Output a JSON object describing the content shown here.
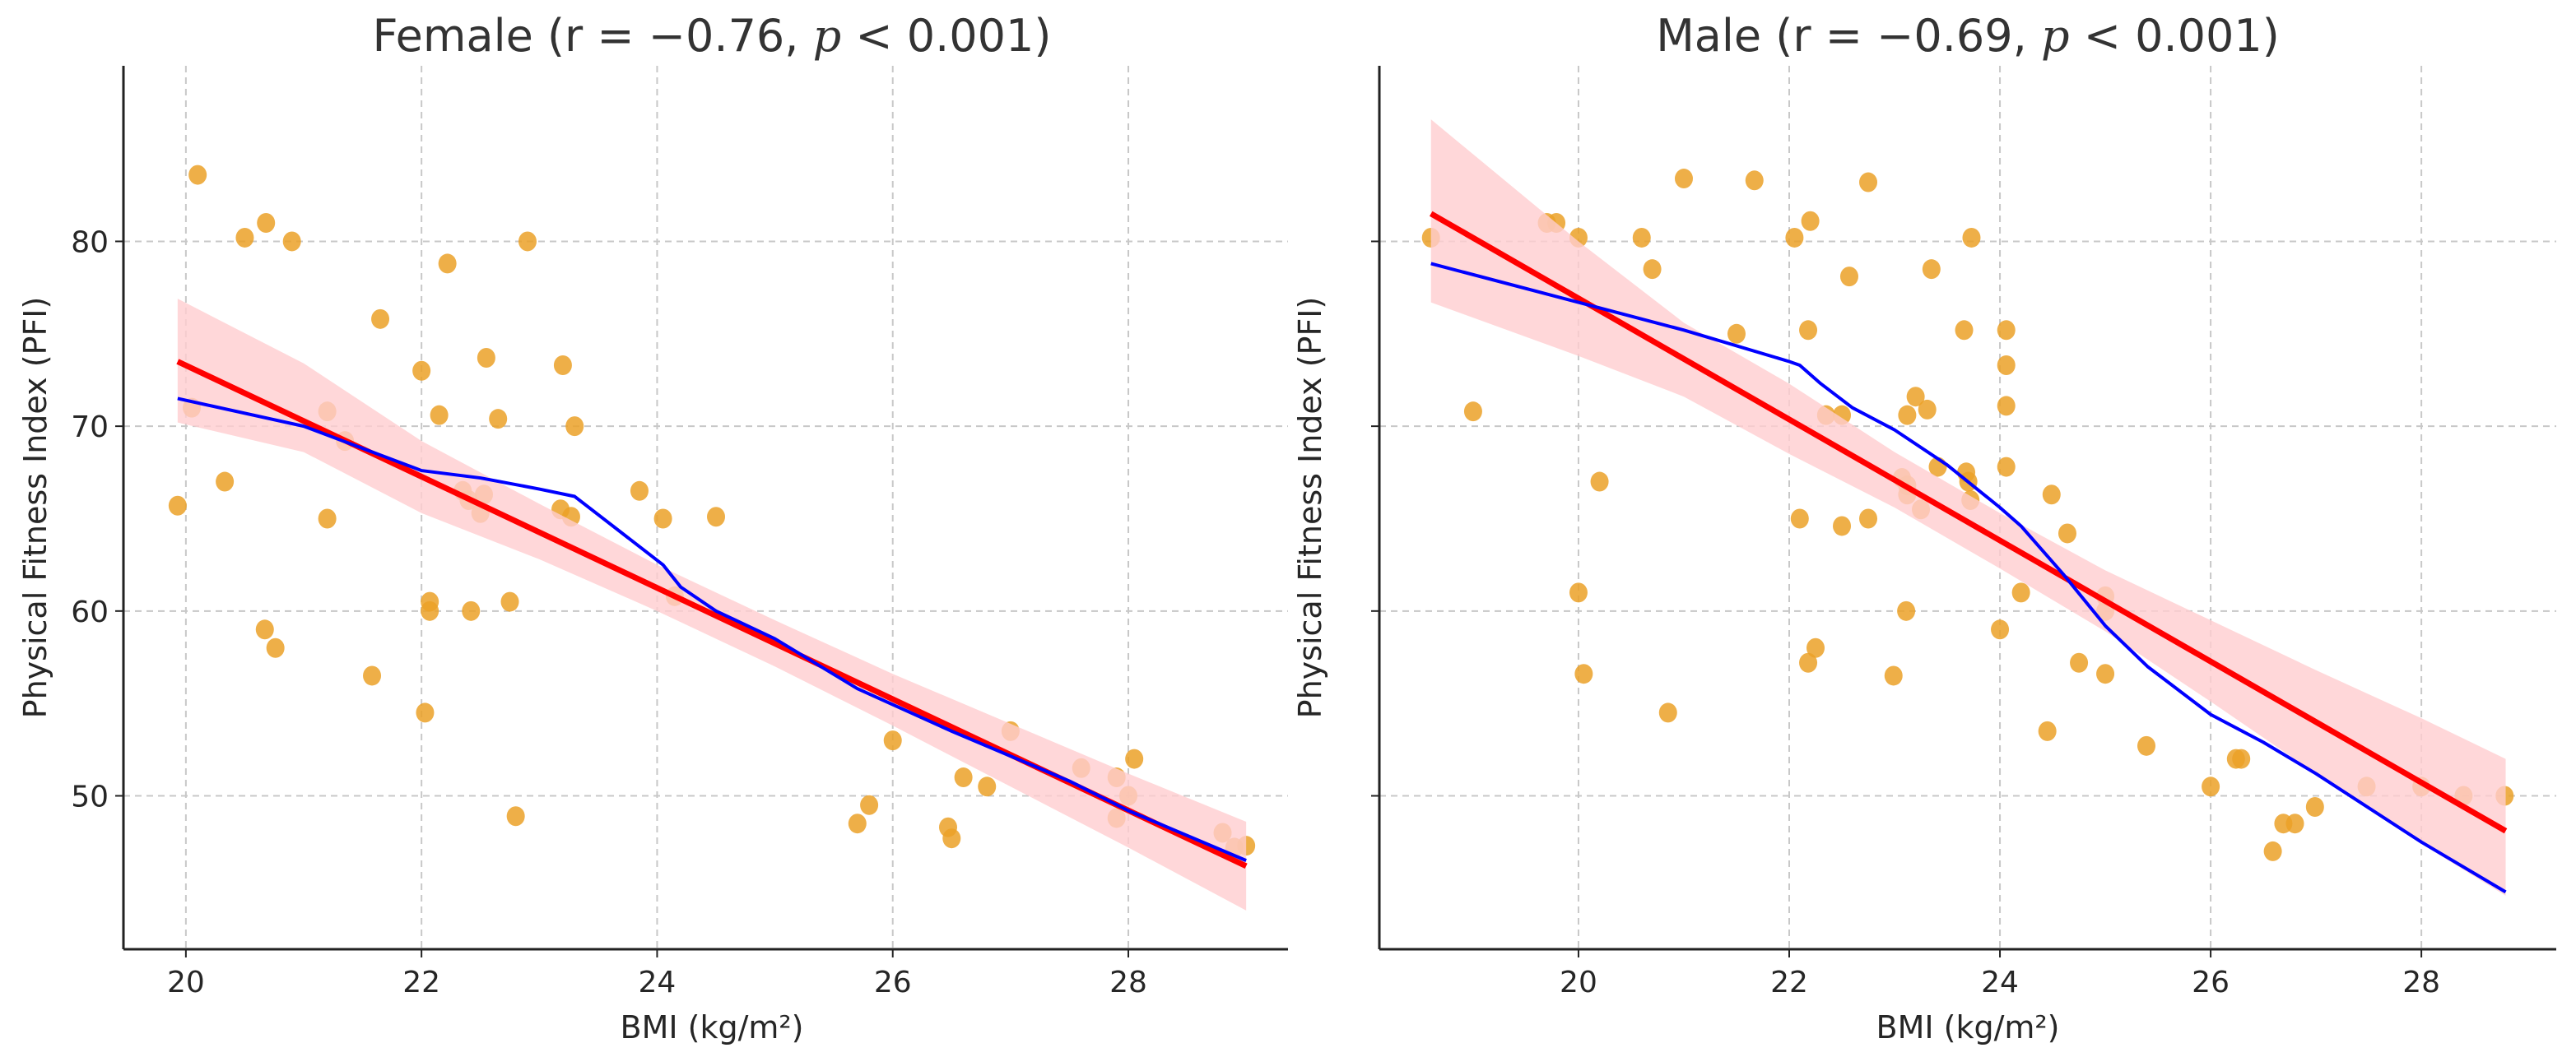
{
  "colors": {
    "points": "#EBA128",
    "fit": "#FF0000",
    "band": "#FFCDD0",
    "lowess": "#0000FF",
    "grid": "#C8C8C8"
  },
  "chart_data": [
    {
      "type": "scatter",
      "title_parts": [
        "Female (r = −0.76, ",
        "p",
        " < 0.001)"
      ],
      "xlabel": "BMI (kg/m²)",
      "ylabel": "Physical Fitness Index (PFI)",
      "xlim": [
        19.47,
        29.46
      ],
      "ylim": [
        41.7,
        89.5
      ],
      "xticks": [
        20,
        22,
        24,
        26,
        28
      ],
      "yticks": [
        50,
        60,
        70,
        80
      ],
      "show_yticklabels": true,
      "grid": true,
      "points": [
        [
          20.1,
          83.6
        ],
        [
          20.05,
          71
        ],
        [
          19.93,
          65.7
        ],
        [
          20.33,
          67
        ],
        [
          20.5,
          80.2
        ],
        [
          20.68,
          81
        ],
        [
          20.9,
          80
        ],
        [
          20.67,
          59
        ],
        [
          20.76,
          58
        ],
        [
          21.2,
          70.8
        ],
        [
          21.2,
          65
        ],
        [
          21.35,
          69.2
        ],
        [
          21.58,
          56.5
        ],
        [
          21.65,
          75.8
        ],
        [
          22,
          73
        ],
        [
          22.03,
          54.5
        ],
        [
          22.07,
          60.5
        ],
        [
          22.07,
          60
        ],
        [
          22.15,
          70.6
        ],
        [
          22.22,
          78.8
        ],
        [
          22.35,
          66.5
        ],
        [
          22.4,
          66
        ],
        [
          22.42,
          60
        ],
        [
          22.5,
          65.3
        ],
        [
          22.53,
          66.3
        ],
        [
          22.55,
          73.7
        ],
        [
          22.65,
          70.4
        ],
        [
          22.75,
          60.5
        ],
        [
          22.8,
          48.9
        ],
        [
          22.9,
          80
        ],
        [
          23.18,
          65.5
        ],
        [
          23.2,
          73.3
        ],
        [
          23.27,
          65.1
        ],
        [
          23.3,
          70
        ],
        [
          23.85,
          66.5
        ],
        [
          24.05,
          65
        ],
        [
          24.15,
          60.8
        ],
        [
          24.5,
          65.1
        ],
        [
          25.7,
          48.5
        ],
        [
          25.8,
          49.5
        ],
        [
          26,
          53
        ],
        [
          26.47,
          48.3
        ],
        [
          26.5,
          47.7
        ],
        [
          26.6,
          51
        ],
        [
          26.8,
          50.5
        ],
        [
          27,
          53.5
        ],
        [
          27.6,
          51.5
        ],
        [
          27.9,
          51
        ],
        [
          27.9,
          48.8
        ],
        [
          28,
          50
        ],
        [
          28.05,
          52
        ],
        [
          28.8,
          48
        ],
        [
          28.9,
          47.2
        ],
        [
          29,
          47.3
        ]
      ],
      "regression": [
        [
          19.93,
          73.5
        ],
        [
          29,
          46.2
        ]
      ],
      "ci_band": [
        [
          19.93,
          70.2,
          76.9
        ],
        [
          21,
          68.6,
          73.4
        ],
        [
          22,
          65.3,
          69.2
        ],
        [
          23,
          62.8,
          65.8
        ],
        [
          24,
          60.0,
          62.5
        ],
        [
          25,
          57.0,
          59.5
        ],
        [
          26,
          53.8,
          56.6
        ],
        [
          27,
          50.5,
          53.9
        ],
        [
          28,
          47.2,
          51.2
        ],
        [
          29,
          43.8,
          48.6
        ]
      ],
      "lowess": [
        [
          19.93,
          71.5
        ],
        [
          21,
          70
        ],
        [
          22,
          67.6
        ],
        [
          22.5,
          67.2
        ],
        [
          23,
          66.6
        ],
        [
          23.3,
          66.2
        ],
        [
          24.05,
          62.5
        ],
        [
          24.2,
          61.3
        ],
        [
          24.5,
          60
        ],
        [
          25,
          58.5
        ],
        [
          25.7,
          55.8
        ],
        [
          26.5,
          53.5
        ],
        [
          27.5,
          50.8
        ],
        [
          28,
          49.2
        ],
        [
          29,
          46.5
        ]
      ]
    },
    {
      "type": "scatter",
      "title_parts": [
        "Male (r = −0.69, ",
        "p",
        " < 0.001)"
      ],
      "xlabel": "BMI (kg/m²)",
      "ylabel": "Physical Fitness Index (PFI)",
      "xlim": [
        18.11,
        29.28
      ],
      "ylim": [
        41.7,
        89.5
      ],
      "xticks": [
        20,
        22,
        24,
        26,
        28
      ],
      "yticks": [
        50,
        60,
        70,
        80
      ],
      "show_yticklabels": false,
      "grid": true,
      "points": [
        [
          18.6,
          80.2
        ],
        [
          19.0,
          70.8
        ],
        [
          19.7,
          81.0
        ],
        [
          19.79,
          81.0
        ],
        [
          20.0,
          80.2
        ],
        [
          20.0,
          61.0
        ],
        [
          20.05,
          56.6
        ],
        [
          20.2,
          67.0
        ],
        [
          20.6,
          80.2
        ],
        [
          20.7,
          78.5
        ],
        [
          20.85,
          54.5
        ],
        [
          21.0,
          83.4
        ],
        [
          21.5,
          75.0
        ],
        [
          21.67,
          83.3
        ],
        [
          22.05,
          80.2
        ],
        [
          22.2,
          81.1
        ],
        [
          22.18,
          75.2
        ],
        [
          22.1,
          65.0
        ],
        [
          22.25,
          58.0
        ],
        [
          22.18,
          57.2
        ],
        [
          22.35,
          70.6
        ],
        [
          22.5,
          70.6
        ],
        [
          22.5,
          64.6
        ],
        [
          22.57,
          78.1
        ],
        [
          22.75,
          83.2
        ],
        [
          22.75,
          65.0
        ],
        [
          22.99,
          56.5
        ],
        [
          23.07,
          67.2
        ],
        [
          23.12,
          66.3
        ],
        [
          23.12,
          66.8
        ],
        [
          23.11,
          60.0
        ],
        [
          23.2,
          71.6
        ],
        [
          23.12,
          70.6
        ],
        [
          23.25,
          65.5
        ],
        [
          23.31,
          70.9
        ],
        [
          23.35,
          78.5
        ],
        [
          23.41,
          67.8
        ],
        [
          23.66,
          75.2
        ],
        [
          23.68,
          67.5
        ],
        [
          23.7,
          67.0
        ],
        [
          23.72,
          66.0
        ],
        [
          23.73,
          80.2
        ],
        [
          24.0,
          59.0
        ],
        [
          24.06,
          75.2
        ],
        [
          24.06,
          73.3
        ],
        [
          24.06,
          71.1
        ],
        [
          24.06,
          67.8
        ],
        [
          24.2,
          61.0
        ],
        [
          24.45,
          53.5
        ],
        [
          24.49,
          66.3
        ],
        [
          24.64,
          64.2
        ],
        [
          24.75,
          57.2
        ],
        [
          25.0,
          60.8
        ],
        [
          25.0,
          60.0
        ],
        [
          25.0,
          56.6
        ],
        [
          25.39,
          52.7
        ],
        [
          26.0,
          50.5
        ],
        [
          26.24,
          52.0
        ],
        [
          26.29,
          52.0
        ],
        [
          26.59,
          47.0
        ],
        [
          26.69,
          48.5
        ],
        [
          26.8,
          48.5
        ],
        [
          26.99,
          49.4
        ],
        [
          27.48,
          50.5
        ],
        [
          28.0,
          50.5
        ],
        [
          28.4,
          50.0
        ],
        [
          28.79,
          50.0
        ]
      ],
      "regression": [
        [
          18.6,
          81.5
        ],
        [
          28.8,
          48.1
        ]
      ],
      "ci_band": [
        [
          18.6,
          76.7,
          86.6
        ],
        [
          20,
          73.8,
          80.0
        ],
        [
          21,
          71.6,
          75.6
        ],
        [
          22,
          68.5,
          72.3
        ],
        [
          23,
          65.6,
          68.6
        ],
        [
          24,
          62.3,
          65.3
        ],
        [
          25,
          58.9,
          62.2
        ],
        [
          26,
          55.1,
          59.5
        ],
        [
          27,
          51.2,
          56.8
        ],
        [
          28,
          47.4,
          54.2
        ],
        [
          28.8,
          44.6,
          52.0
        ]
      ],
      "lowess": [
        [
          18.6,
          78.8
        ],
        [
          20,
          76.7
        ],
        [
          21,
          75.2
        ],
        [
          22,
          73.5
        ],
        [
          22.1,
          73.3
        ],
        [
          22.3,
          72.3
        ],
        [
          22.6,
          71
        ],
        [
          23,
          69.8
        ],
        [
          23.5,
          67.9
        ],
        [
          24,
          65.6
        ],
        [
          24.2,
          64.6
        ],
        [
          24.6,
          62.0
        ],
        [
          25,
          59.2
        ],
        [
          25.4,
          57.0
        ],
        [
          26,
          54.4
        ],
        [
          26.5,
          52.9
        ],
        [
          27,
          51.2
        ],
        [
          28,
          47.5
        ],
        [
          28.8,
          44.8
        ]
      ]
    }
  ]
}
